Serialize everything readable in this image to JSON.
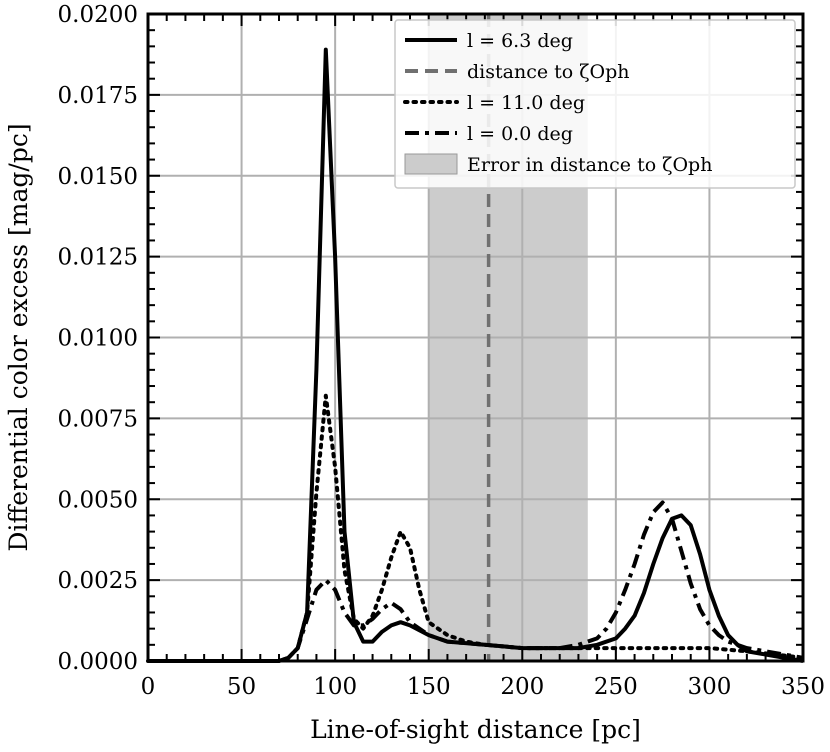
{
  "chart_data": {
    "type": "line",
    "title": "",
    "xlabel": "Line-of-sight distance [pc]",
    "ylabel": "Differential color excess [mag/pc]",
    "xlim": [
      0,
      350
    ],
    "ylim": [
      0,
      0.02
    ],
    "grid": true,
    "legend_position": "top-right",
    "x_ticks": [
      "0",
      "50",
      "100",
      "150",
      "200",
      "250",
      "300",
      "350"
    ],
    "y_ticks": [
      "0.0000",
      "0.0025",
      "0.0050",
      "0.0075",
      "0.0100",
      "0.0125",
      "0.0150",
      "0.0175",
      "0.0200"
    ],
    "legend": [
      {
        "label": "l = 6.3 deg",
        "style": "solid"
      },
      {
        "label": "distance to ζOph",
        "style": "dashed-gray"
      },
      {
        "label": "l = 11.0 deg",
        "style": "dotted"
      },
      {
        "label": "l = 0.0 deg",
        "style": "dashdot"
      },
      {
        "label": "Error in distance to ζOph",
        "style": "shaded"
      }
    ],
    "distance_line": 182,
    "error_band": [
      150,
      235
    ],
    "series": [
      {
        "name": "l = 6.3 deg",
        "style": "solid",
        "x": [
          0,
          70,
          75,
          80,
          85,
          90,
          95,
          100,
          105,
          110,
          115,
          120,
          125,
          130,
          135,
          140,
          150,
          160,
          180,
          200,
          220,
          230,
          240,
          250,
          255,
          260,
          265,
          270,
          275,
          280,
          285,
          290,
          295,
          300,
          305,
          310,
          315,
          320,
          330,
          340,
          350
        ],
        "y": [
          0,
          0,
          0.0001,
          0.0004,
          0.0015,
          0.009,
          0.0189,
          0.0125,
          0.004,
          0.0012,
          0.0006,
          0.0006,
          0.0009,
          0.0011,
          0.0012,
          0.0011,
          0.0008,
          0.0006,
          0.0005,
          0.0004,
          0.0004,
          0.0004,
          0.0005,
          0.0007,
          0.001,
          0.0014,
          0.0021,
          0.003,
          0.0038,
          0.0044,
          0.0045,
          0.0042,
          0.0033,
          0.0022,
          0.0014,
          0.0008,
          0.0005,
          0.0003,
          0.0002,
          0.0001,
          0
        ]
      },
      {
        "name": "l = 11.0 deg",
        "style": "dotted",
        "x": [
          0,
          70,
          75,
          80,
          85,
          90,
          95,
          100,
          105,
          110,
          115,
          120,
          125,
          130,
          135,
          140,
          145,
          150,
          160,
          170,
          180,
          200,
          220,
          240,
          260,
          280,
          300,
          320,
          335,
          350
        ],
        "y": [
          0,
          0,
          0.0001,
          0.0004,
          0.0015,
          0.0052,
          0.0082,
          0.006,
          0.0028,
          0.0013,
          0.001,
          0.0014,
          0.0022,
          0.0032,
          0.004,
          0.0035,
          0.0022,
          0.0012,
          0.0008,
          0.0006,
          0.0005,
          0.0004,
          0.0004,
          0.0004,
          0.0004,
          0.0004,
          0.0004,
          0.0003,
          0.0002,
          0.0001
        ]
      },
      {
        "name": "l = 0.0 deg",
        "style": "dashdot",
        "x": [
          0,
          70,
          75,
          80,
          85,
          90,
          95,
          100,
          105,
          110,
          115,
          120,
          125,
          130,
          135,
          140,
          150,
          160,
          180,
          200,
          220,
          230,
          240,
          245,
          250,
          255,
          260,
          265,
          270,
          275,
          280,
          285,
          290,
          295,
          300,
          305,
          310,
          320,
          330,
          340,
          350
        ],
        "y": [
          0,
          0,
          0.0001,
          0.0004,
          0.0013,
          0.0022,
          0.0025,
          0.0022,
          0.0015,
          0.0011,
          0.0011,
          0.0013,
          0.0016,
          0.0018,
          0.0016,
          0.0012,
          0.0008,
          0.0006,
          0.0005,
          0.0004,
          0.0004,
          0.0005,
          0.0007,
          0.001,
          0.0015,
          0.0022,
          0.003,
          0.0039,
          0.0046,
          0.0049,
          0.0044,
          0.0034,
          0.0024,
          0.0016,
          0.0011,
          0.0008,
          0.0006,
          0.0004,
          0.0003,
          0.0002,
          0.0001
        ]
      }
    ]
  }
}
